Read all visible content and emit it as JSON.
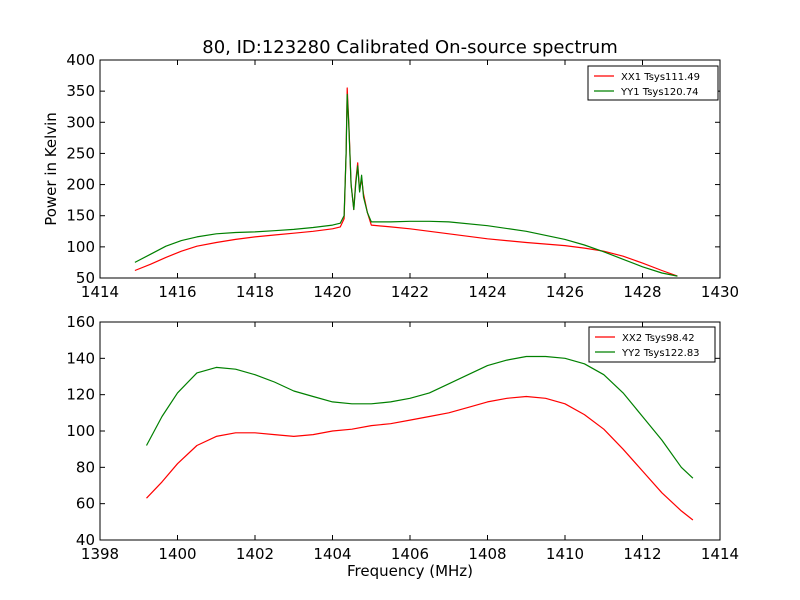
{
  "title": "80, ID:123280 Calibrated On-source spectrum",
  "chart_data": [
    {
      "type": "line",
      "title": "80, ID:123280 Calibrated On-source spectrum",
      "xlabel": "",
      "ylabel": "Power in Kelvin",
      "xlim": [
        1414,
        1430
      ],
      "ylim": [
        50,
        400
      ],
      "xticks": [
        "1414",
        "1416",
        "1418",
        "1420",
        "1422",
        "1424",
        "1426",
        "1428",
        "1430"
      ],
      "yticks": [
        "50",
        "100",
        "150",
        "200",
        "250",
        "300",
        "350",
        "400"
      ],
      "grid": false,
      "legend": "top-right",
      "colors": {
        "red": "#ff0000",
        "green": "#008000"
      },
      "series": [
        {
          "name": "XX1 Tsys111.49",
          "color": "#ff0000",
          "x": [
            1414.9,
            1415.3,
            1415.7,
            1416.1,
            1416.5,
            1417.0,
            1417.5,
            1418.0,
            1418.5,
            1419.0,
            1419.5,
            1420.0,
            1420.2,
            1420.3,
            1420.35,
            1420.38,
            1420.42,
            1420.48,
            1420.55,
            1420.6,
            1420.65,
            1420.7,
            1420.75,
            1420.8,
            1420.9,
            1421.0,
            1421.5,
            1422.0,
            1422.5,
            1423.0,
            1424.0,
            1425.0,
            1426.0,
            1426.5,
            1427.0,
            1427.5,
            1428.0,
            1428.5,
            1428.9
          ],
          "y": [
            62,
            72,
            83,
            93,
            101,
            107,
            112,
            116,
            119,
            122,
            125,
            129,
            132,
            145,
            250,
            355,
            300,
            200,
            160,
            205,
            235,
            190,
            210,
            185,
            155,
            135,
            132,
            129,
            125,
            121,
            113,
            107,
            102,
            98,
            93,
            85,
            74,
            62,
            53
          ]
        },
        {
          "name": "YY1 Tsys120.74",
          "color": "#008000",
          "x": [
            1414.9,
            1415.3,
            1415.7,
            1416.1,
            1416.5,
            1417.0,
            1417.5,
            1418.0,
            1418.5,
            1419.0,
            1419.5,
            1420.0,
            1420.2,
            1420.3,
            1420.35,
            1420.38,
            1420.42,
            1420.48,
            1420.55,
            1420.6,
            1420.65,
            1420.7,
            1420.75,
            1420.8,
            1420.9,
            1421.0,
            1421.5,
            1422.0,
            1422.5,
            1423.0,
            1424.0,
            1425.0,
            1426.0,
            1426.5,
            1427.0,
            1427.5,
            1428.0,
            1428.5,
            1428.9
          ],
          "y": [
            75,
            88,
            101,
            110,
            116,
            121,
            123,
            124,
            126,
            128,
            131,
            135,
            138,
            150,
            250,
            345,
            295,
            200,
            160,
            200,
            230,
            188,
            215,
            180,
            155,
            140,
            140,
            141,
            141,
            140,
            134,
            125,
            112,
            103,
            92,
            80,
            68,
            58,
            53
          ]
        }
      ]
    },
    {
      "type": "line",
      "title": "",
      "xlabel": "Frequency (MHz)",
      "ylabel": "",
      "xlim": [
        1398,
        1414
      ],
      "ylim": [
        40,
        160
      ],
      "xticks": [
        "1398",
        "1400",
        "1402",
        "1404",
        "1406",
        "1408",
        "1410",
        "1412",
        "1414"
      ],
      "yticks": [
        "40",
        "60",
        "80",
        "100",
        "120",
        "140",
        "160"
      ],
      "grid": false,
      "legend": "top-right",
      "series": [
        {
          "name": "XX2 Tsys98.42",
          "color": "#ff0000",
          "x": [
            1399.2,
            1399.6,
            1400.0,
            1400.5,
            1401.0,
            1401.5,
            1402.0,
            1402.5,
            1403.0,
            1403.5,
            1404.0,
            1404.5,
            1405.0,
            1405.5,
            1406.0,
            1406.5,
            1407.0,
            1407.5,
            1408.0,
            1408.5,
            1409.0,
            1409.5,
            1410.0,
            1410.5,
            1411.0,
            1411.5,
            1412.0,
            1412.5,
            1413.0,
            1413.3
          ],
          "y": [
            63,
            72,
            82,
            92,
            97,
            99,
            99,
            98,
            97,
            98,
            100,
            101,
            103,
            104,
            106,
            108,
            110,
            113,
            116,
            118,
            119,
            118,
            115,
            109,
            101,
            90,
            78,
            66,
            56,
            51
          ]
        },
        {
          "name": "YY2 Tsys122.83",
          "color": "#008000",
          "x": [
            1399.2,
            1399.6,
            1400.0,
            1400.5,
            1401.0,
            1401.5,
            1402.0,
            1402.5,
            1403.0,
            1403.5,
            1404.0,
            1404.5,
            1405.0,
            1405.5,
            1406.0,
            1406.5,
            1407.0,
            1407.5,
            1408.0,
            1408.5,
            1409.0,
            1409.5,
            1410.0,
            1410.5,
            1411.0,
            1411.5,
            1412.0,
            1412.5,
            1413.0,
            1413.3
          ],
          "y": [
            92,
            108,
            121,
            132,
            135,
            134,
            131,
            127,
            122,
            119,
            116,
            115,
            115,
            116,
            118,
            121,
            126,
            131,
            136,
            139,
            141,
            141,
            140,
            137,
            131,
            121,
            108,
            95,
            80,
            74
          ]
        }
      ]
    }
  ]
}
